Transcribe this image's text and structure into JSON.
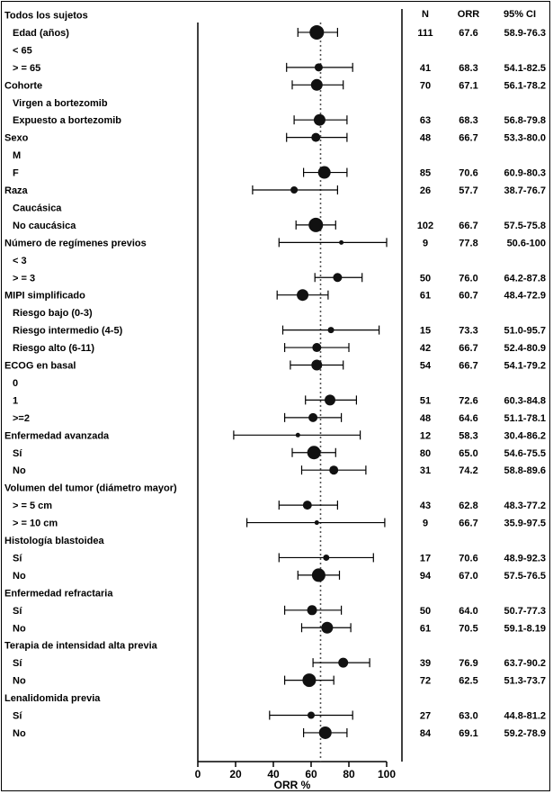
{
  "chart_data": {
    "type": "forest",
    "column_headers": {
      "n": "N",
      "orr": "ORR",
      "ci": "95% CI"
    },
    "xlabel": "ORR %",
    "xlim": [
      0,
      100
    ],
    "xticks": [
      "0",
      "20",
      "40",
      "60",
      "80",
      "100"
    ],
    "reference_line": 65,
    "rows": [
      {
        "label": "Todos los sujetos",
        "indent": 0
      },
      {
        "label": "Edad (años)",
        "indent": 1,
        "n": "111",
        "orr": "67.6",
        "ci": "58.9-76.3",
        "est": 63,
        "lo": 53,
        "hi": 74,
        "size": 8
      },
      {
        "label": "< 65",
        "indent": 1
      },
      {
        "label": "> = 65",
        "indent": 1,
        "n": "41",
        "orr": "68.3",
        "ci": "54.1-82.5",
        "est": 64,
        "lo": 47,
        "hi": 82,
        "size": 4.5
      },
      {
        "label": "Cohorte",
        "indent": 0,
        "n": "70",
        "orr": "67.1",
        "ci": "56.1-78.2",
        "est": 63,
        "lo": 50,
        "hi": 77,
        "size": 6.5
      },
      {
        "label": "Virgen a bortezomib",
        "indent": 1
      },
      {
        "label": "Expuesto a bortezomib",
        "indent": 1,
        "n": "63",
        "orr": "68.3",
        "ci": "56.8-79.8",
        "est": 64.5,
        "lo": 51,
        "hi": 79,
        "size": 6.5
      },
      {
        "label": "Sexo",
        "indent": 0,
        "n": "48",
        "orr": "66.7",
        "ci": "53.3-80.0",
        "est": 62.5,
        "lo": 47,
        "hi": 79,
        "size": 5
      },
      {
        "label": "M",
        "indent": 1
      },
      {
        "label": "F",
        "indent": 1,
        "n": "85",
        "orr": "70.6",
        "ci": "60.9-80.3",
        "est": 67,
        "lo": 56,
        "hi": 79,
        "size": 7
      },
      {
        "label": "Raza",
        "indent": 0,
        "n": "26",
        "orr": "57.7",
        "ci": "38.7-76.7",
        "est": 51,
        "lo": 29,
        "hi": 74,
        "size": 4
      },
      {
        "label": "Caucásica",
        "indent": 1
      },
      {
        "label": "No caucásica",
        "indent": 1,
        "n": "102",
        "orr": "66.7",
        "ci": "57.5-75.8",
        "est": 62.5,
        "lo": 52,
        "hi": 73,
        "size": 8
      },
      {
        "label": "Número de regímenes previos",
        "indent": 0,
        "n": "9",
        "orr": "77.8",
        "ci": "50.6-100",
        "est": 76,
        "lo": 43,
        "hi": 100,
        "size": 2.5
      },
      {
        "label": "< 3",
        "indent": 1
      },
      {
        "label": "> = 3",
        "indent": 1,
        "n": "50",
        "orr": "76.0",
        "ci": "64.2-87.8",
        "est": 74,
        "lo": 62,
        "hi": 87,
        "size": 5
      },
      {
        "label": "MIPI simplificado",
        "indent": 0,
        "n": "61",
        "orr": "60.7",
        "ci": "48.4-72.9",
        "est": 55.5,
        "lo": 42,
        "hi": 69,
        "size": 6.5
      },
      {
        "label": "Riesgo bajo (0-3)",
        "indent": 1
      },
      {
        "label": "Riesgo intermedio (4-5)",
        "indent": 1,
        "n": "15",
        "orr": "73.3",
        "ci": "51.0-95.7",
        "est": 70.5,
        "lo": 45,
        "hi": 96,
        "size": 3.5
      },
      {
        "label": "Riesgo alto (6-11)",
        "indent": 1,
        "n": "42",
        "orr": "66.7",
        "ci": "52.4-80.9",
        "est": 63,
        "lo": 46,
        "hi": 80,
        "size": 5
      },
      {
        "label": "ECOG en basal",
        "indent": 0,
        "n": "54",
        "orr": "66.7",
        "ci": "54.1-79.2",
        "est": 63,
        "lo": 49,
        "hi": 77,
        "size": 6
      },
      {
        "label": "0",
        "indent": 1
      },
      {
        "label": "1",
        "indent": 1,
        "n": "51",
        "orr": "72.6",
        "ci": "60.3-84.8",
        "est": 70,
        "lo": 57,
        "hi": 84,
        "size": 6
      },
      {
        "label": ">=2",
        "indent": 1,
        "n": "48",
        "orr": "64.6",
        "ci": "51.1-78.1",
        "est": 61,
        "lo": 46,
        "hi": 76,
        "size": 5
      },
      {
        "label": "Enfermedad avanzada",
        "indent": 0,
        "n": "12",
        "orr": "58.3",
        "ci": "30.4-86.2",
        "est": 53,
        "lo": 19,
        "hi": 86,
        "size": 2.5
      },
      {
        "label": "Sí",
        "indent": 1,
        "n": "80",
        "orr": "65.0",
        "ci": "54.6-75.5",
        "est": 61.5,
        "lo": 50,
        "hi": 73,
        "size": 7.5
      },
      {
        "label": "No",
        "indent": 1,
        "n": "31",
        "orr": "74.2",
        "ci": "58.8-89.6",
        "est": 72,
        "lo": 55,
        "hi": 89,
        "size": 5
      },
      {
        "label": "Volumen del tumor (diámetro mayor)",
        "indent": 0
      },
      {
        "label": "> = 5 cm",
        "indent": 1,
        "n": "43",
        "orr": "62.8",
        "ci": "48.3-77.2",
        "est": 58,
        "lo": 43,
        "hi": 74,
        "size": 5
      },
      {
        "label": "> = 10 cm",
        "indent": 1,
        "n": "9",
        "orr": "66.7",
        "ci": "35.9-97.5",
        "est": 63,
        "lo": 26,
        "hi": 99,
        "size": 2.5
      },
      {
        "label": "Histología blastoidea",
        "indent": 0
      },
      {
        "label": "Sí",
        "indent": 1,
        "n": "17",
        "orr": "70.6",
        "ci": "48.9-92.3",
        "est": 68,
        "lo": 43,
        "hi": 93,
        "size": 3.5
      },
      {
        "label": "No",
        "indent": 1,
        "n": "94",
        "orr": "67.0",
        "ci": "57.5-76.5",
        "est": 64,
        "lo": 53,
        "hi": 75,
        "size": 7.5
      },
      {
        "label": "Enfermedad refractaria",
        "indent": 0
      },
      {
        "label": "Sí",
        "indent": 1,
        "n": "50",
        "orr": "64.0",
        "ci": "50.7-77.3",
        "est": 60.5,
        "lo": 46,
        "hi": 76,
        "size": 5.5
      },
      {
        "label": "No",
        "indent": 1,
        "n": "61",
        "orr": "70.5",
        "ci": "59.1-8.19",
        "est": 68.5,
        "lo": 55,
        "hi": 81,
        "size": 6.5
      },
      {
        "label": "Terapia de intensidad alta previa",
        "indent": 0
      },
      {
        "label": "Sí",
        "indent": 1,
        "n": "39",
        "orr": "76.9",
        "ci": "63.7-90.2",
        "est": 77,
        "lo": 61,
        "hi": 91,
        "size": 5.5
      },
      {
        "label": "No",
        "indent": 1,
        "n": "72",
        "orr": "62.5",
        "ci": "51.3-73.7",
        "est": 59,
        "lo": 46,
        "hi": 72,
        "size": 7.5
      },
      {
        "label": "Lenalidomida previa",
        "indent": 0
      },
      {
        "label": "Sí",
        "indent": 1,
        "n": "27",
        "orr": "63.0",
        "ci": "44.8-81.2",
        "est": 60,
        "lo": 38,
        "hi": 82,
        "size": 4
      },
      {
        "label": "No",
        "indent": 1,
        "n": "84",
        "orr": "69.1",
        "ci": "59.2-78.9",
        "est": 67.5,
        "lo": 56,
        "hi": 79,
        "size": 7
      }
    ]
  }
}
